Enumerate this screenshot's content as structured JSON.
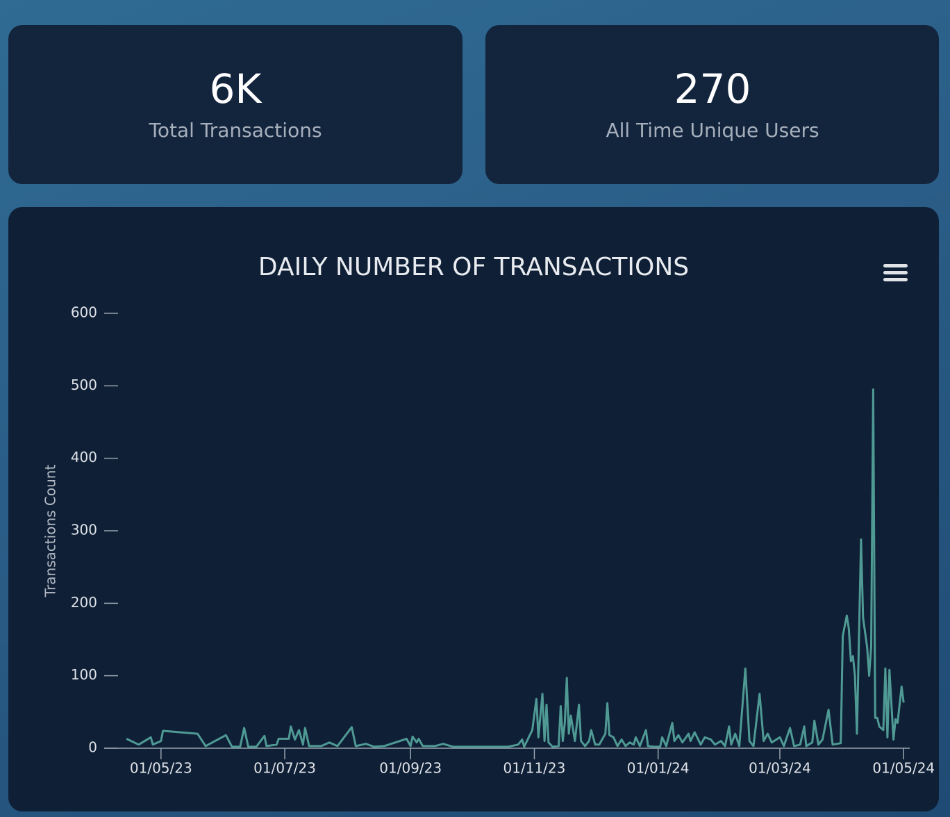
{
  "cards": [
    {
      "value": "6K",
      "label": "Total Transactions"
    },
    {
      "value": "270",
      "label": "All Time Unique Users"
    }
  ],
  "chart_data": {
    "type": "line",
    "title": "DAILY NUMBER OF TRANSACTIONS",
    "y_label": "Transactions Count",
    "color": "#4f9a94",
    "xlim": [
      "2023-04-03",
      "2024-05-04"
    ],
    "xticks": [
      {
        "value": "2023-05-01",
        "label": "01/05/23"
      },
      {
        "value": "2023-07-01",
        "label": "01/07/23"
      },
      {
        "value": "2023-09-01",
        "label": "01/09/23"
      },
      {
        "value": "2023-11-01",
        "label": "01/11/23"
      },
      {
        "value": "2024-01-01",
        "label": "01/01/24"
      },
      {
        "value": "2024-03-01",
        "label": "01/03/24"
      },
      {
        "value": "2024-05-01",
        "label": "01/05/24"
      }
    ],
    "ylim": [
      0,
      600
    ],
    "yticks": [
      0,
      100,
      200,
      300,
      400,
      500,
      600
    ],
    "x": [
      "2023-04-14",
      "2023-04-20",
      "2023-04-26",
      "2023-04-27",
      "2023-05-01",
      "2023-05-02",
      "2023-05-19",
      "2023-05-23",
      "2023-06-02",
      "2023-06-05",
      "2023-06-09",
      "2023-06-11",
      "2023-06-13",
      "2023-06-17",
      "2023-06-21",
      "2023-06-22",
      "2023-06-27",
      "2023-06-28",
      "2023-07-03",
      "2023-07-04",
      "2023-07-06",
      "2023-07-08",
      "2023-07-10",
      "2023-07-11",
      "2023-07-13",
      "2023-07-19",
      "2023-07-23",
      "2023-07-27",
      "2023-08-03",
      "2023-08-05",
      "2023-08-10",
      "2023-08-14",
      "2023-08-19",
      "2023-08-30",
      "2023-09-01",
      "2023-09-02",
      "2023-09-04",
      "2023-09-05",
      "2023-09-07",
      "2023-09-13",
      "2023-09-17",
      "2023-09-22",
      "2023-10-19",
      "2023-10-24",
      "2023-10-26",
      "2023-10-27",
      "2023-10-31",
      "2023-11-02",
      "2023-11-03",
      "2023-11-05",
      "2023-11-06",
      "2023-11-07",
      "2023-11-08",
      "2023-11-10",
      "2023-11-13",
      "2023-11-14",
      "2023-11-15",
      "2023-11-16",
      "2023-11-17",
      "2023-11-18",
      "2023-11-19",
      "2023-11-21",
      "2023-11-23",
      "2023-11-24",
      "2023-11-26",
      "2023-11-28",
      "2023-11-29",
      "2023-12-01",
      "2023-12-03",
      "2023-12-06",
      "2023-12-07",
      "2023-12-08",
      "2023-12-10",
      "2023-12-12",
      "2023-12-14",
      "2023-12-16",
      "2023-12-18",
      "2023-12-20",
      "2023-12-21",
      "2023-12-23",
      "2023-12-26",
      "2023-12-27",
      "2023-12-30",
      "2024-01-02",
      "2024-01-03",
      "2024-01-05",
      "2024-01-08",
      "2024-01-09",
      "2024-01-11",
      "2024-01-13",
      "2024-01-16",
      "2024-01-17",
      "2024-01-19",
      "2024-01-22",
      "2024-01-24",
      "2024-01-27",
      "2024-01-29",
      "2024-02-01",
      "2024-02-03",
      "2024-02-05",
      "2024-02-06",
      "2024-02-08",
      "2024-02-10",
      "2024-02-13",
      "2024-02-15",
      "2024-02-17",
      "2024-02-20",
      "2024-02-22",
      "2024-02-24",
      "2024-02-26",
      "2024-03-01",
      "2024-03-03",
      "2024-03-06",
      "2024-03-08",
      "2024-03-11",
      "2024-03-13",
      "2024-03-14",
      "2024-03-17",
      "2024-03-18",
      "2024-03-20",
      "2024-03-22",
      "2024-03-25",
      "2024-03-27",
      "2024-03-31",
      "2024-04-01",
      "2024-04-03",
      "2024-04-04",
      "2024-04-05",
      "2024-04-06",
      "2024-04-07",
      "2024-04-08",
      "2024-04-10",
      "2024-04-11",
      "2024-04-13",
      "2024-04-14",
      "2024-04-15",
      "2024-04-16",
      "2024-04-17",
      "2024-04-18",
      "2024-04-19",
      "2024-04-21",
      "2024-04-22",
      "2024-04-23",
      "2024-04-24",
      "2024-04-26",
      "2024-04-27",
      "2024-04-28",
      "2024-04-30",
      "2024-05-01"
    ],
    "values": [
      13,
      5,
      15,
      5,
      10,
      24,
      20,
      3,
      18,
      2,
      2,
      28,
      2,
      2,
      17,
      3,
      5,
      13,
      13,
      30,
      12,
      25,
      5,
      28,
      3,
      3,
      8,
      3,
      29,
      3,
      6,
      2,
      3,
      13,
      3,
      16,
      8,
      13,
      3,
      3,
      6,
      2,
      2,
      5,
      12,
      2,
      25,
      68,
      15,
      75,
      10,
      60,
      8,
      2,
      3,
      58,
      10,
      35,
      97,
      20,
      45,
      10,
      60,
      10,
      3,
      10,
      25,
      5,
      5,
      20,
      62,
      18,
      15,
      3,
      12,
      3,
      8,
      5,
      15,
      3,
      25,
      3,
      2,
      2,
      15,
      3,
      35,
      10,
      18,
      8,
      20,
      10,
      22,
      5,
      15,
      12,
      5,
      10,
      3,
      30,
      5,
      20,
      3,
      110,
      10,
      3,
      75,
      10,
      20,
      8,
      15,
      3,
      28,
      3,
      5,
      30,
      3,
      8,
      38,
      5,
      12,
      53,
      5,
      7,
      155,
      183,
      165,
      120,
      127,
      100,
      20,
      288,
      180,
      140,
      100,
      140,
      495,
      42,
      42,
      30,
      25,
      110,
      15,
      108,
      12,
      40,
      35,
      85,
      63
    ]
  }
}
